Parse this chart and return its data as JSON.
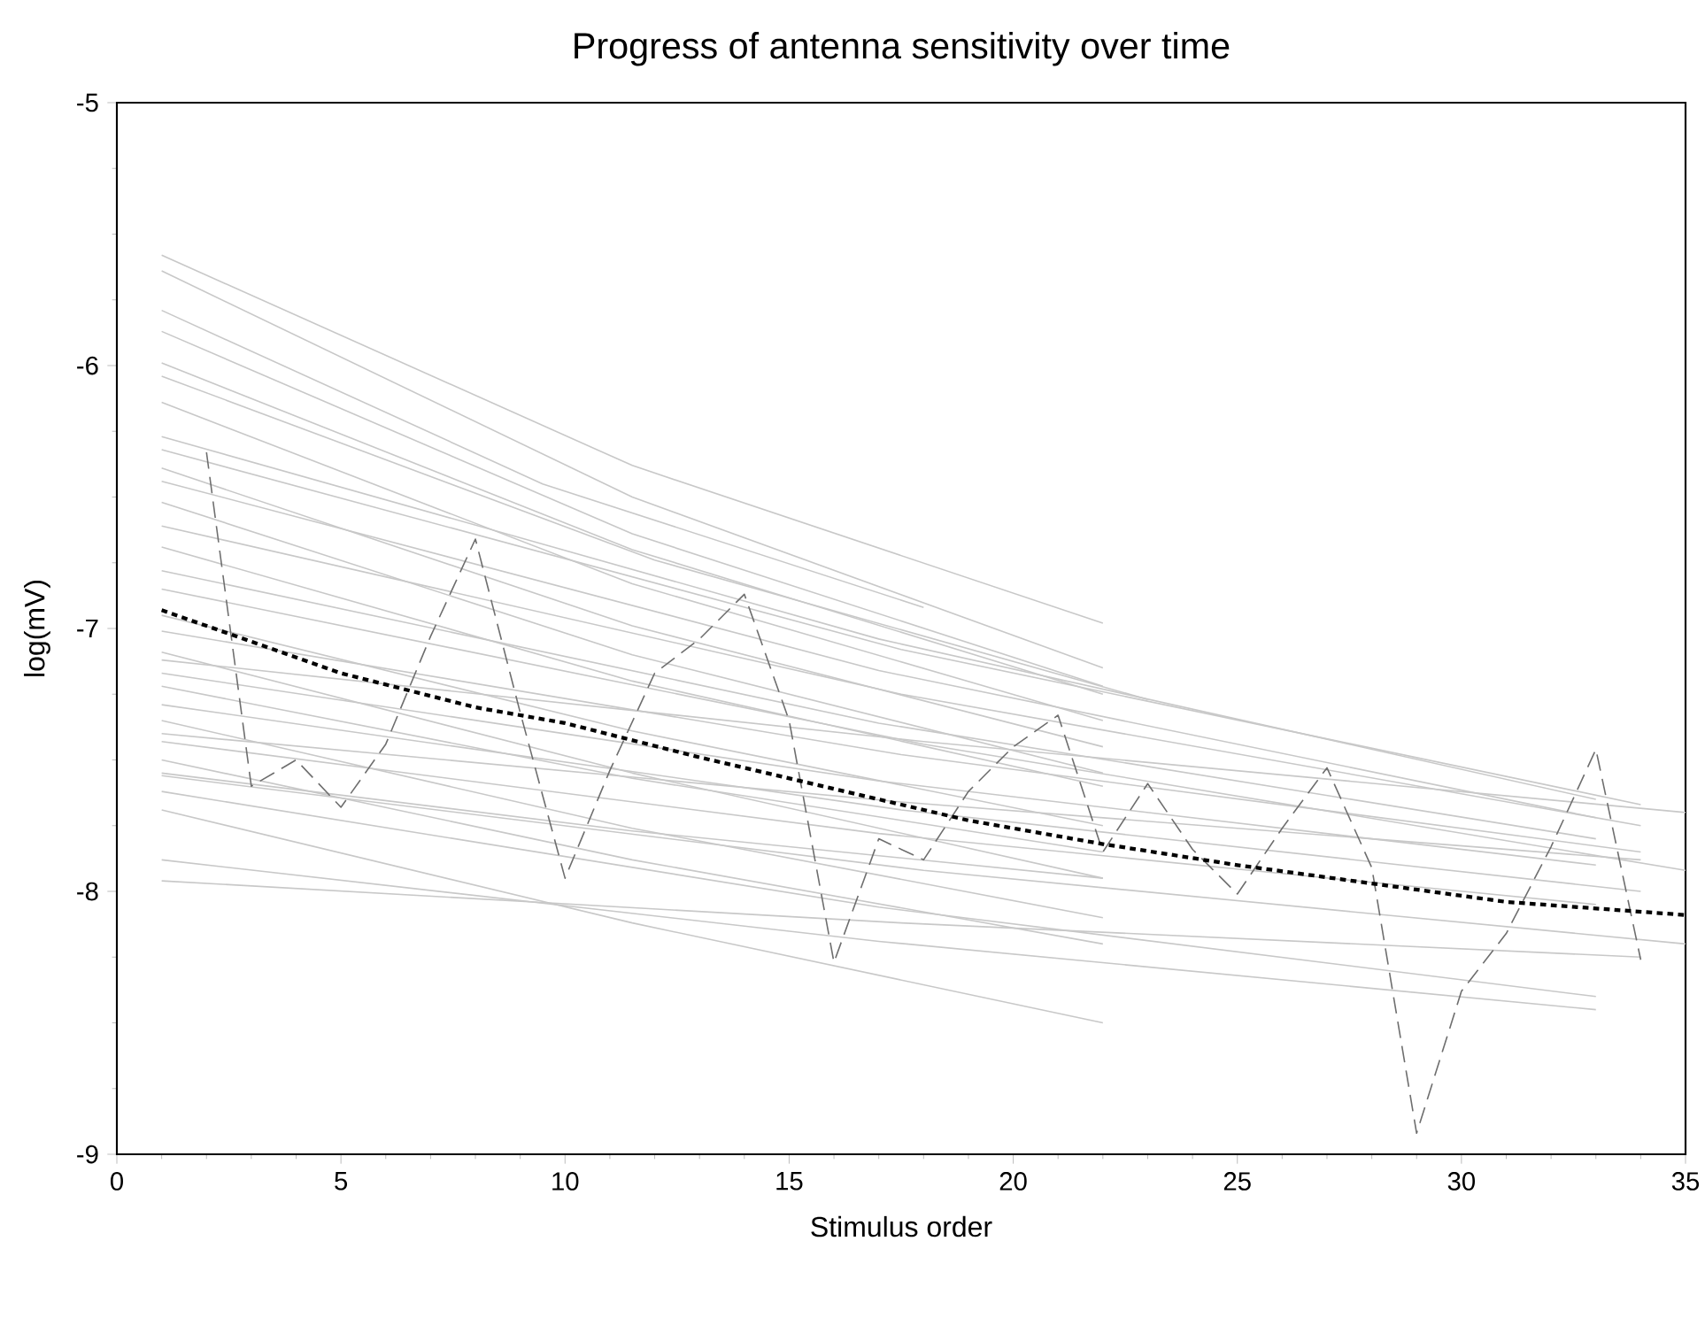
{
  "chart_data": {
    "type": "line",
    "title": "Progress of antenna sensitivity over time",
    "xlabel": "Stimulus order",
    "ylabel": "log(mV)",
    "xlim": [
      0,
      35
    ],
    "ylim": [
      -9,
      -5
    ],
    "xticks": [
      0,
      5,
      10,
      15,
      20,
      25,
      30,
      35
    ],
    "yticks": [
      -9,
      -8,
      -7,
      -6,
      -5
    ],
    "series": [
      {
        "color": "#c8c8c8",
        "line_style": "solid",
        "x": [
          1,
          11.5,
          22
        ],
        "values": [
          -5.58,
          -6.38,
          -6.98
        ]
      },
      {
        "color": "#c8c8c8",
        "line_style": "solid",
        "x": [
          1,
          11.5,
          22
        ],
        "values": [
          -5.64,
          -6.5,
          -7.15
        ]
      },
      {
        "color": "#c8c8c8",
        "line_style": "solid",
        "x": [
          1,
          9.5,
          18
        ],
        "values": [
          -5.79,
          -6.45,
          -6.92
        ]
      },
      {
        "color": "#c8c8c8",
        "line_style": "solid",
        "x": [
          1,
          11.5,
          22
        ],
        "values": [
          -5.87,
          -6.64,
          -7.22
        ]
      },
      {
        "color": "#c8c8c8",
        "line_style": "solid",
        "x": [
          1,
          11.5,
          22
        ],
        "values": [
          -5.99,
          -6.7,
          -7.25
        ]
      },
      {
        "color": "#c8c8c8",
        "line_style": "solid",
        "x": [
          1,
          12,
          23
        ],
        "values": [
          -6.04,
          -6.74,
          -7.27
        ]
      },
      {
        "color": "#c8c8c8",
        "line_style": "solid",
        "x": [
          1,
          11.5,
          22
        ],
        "values": [
          -6.14,
          -6.83,
          -7.35
        ]
      },
      {
        "color": "#c8c8c8",
        "line_style": "solid",
        "x": [
          1,
          17,
          33
        ],
        "values": [
          -6.27,
          -7.04,
          -7.65
        ]
      },
      {
        "color": "#c8c8c8",
        "line_style": "solid",
        "x": [
          1,
          17.5,
          34
        ],
        "values": [
          -6.32,
          -7.08,
          -7.67
        ]
      },
      {
        "color": "#c8c8c8",
        "line_style": "solid",
        "x": [
          1,
          11.5,
          22
        ],
        "values": [
          -6.39,
          -6.99,
          -7.45
        ]
      },
      {
        "color": "#c8c8c8",
        "line_style": "solid",
        "x": [
          1,
          17,
          33
        ],
        "values": [
          -6.44,
          -7.16,
          -7.72
        ]
      },
      {
        "color": "#c8c8c8",
        "line_style": "solid",
        "x": [
          1,
          11.5,
          22
        ],
        "values": [
          -6.52,
          -7.1,
          -7.55
        ]
      },
      {
        "color": "#c8c8c8",
        "line_style": "solid",
        "x": [
          1,
          17.5,
          34
        ],
        "values": [
          -6.61,
          -7.25,
          -7.75
        ]
      },
      {
        "color": "#c8c8c8",
        "line_style": "solid",
        "x": [
          1,
          11.5,
          22
        ],
        "values": [
          -6.69,
          -7.2,
          -7.6
        ]
      },
      {
        "color": "#c8c8c8",
        "line_style": "solid",
        "x": [
          1,
          17,
          33
        ],
        "values": [
          -6.78,
          -7.36,
          -7.8
        ]
      },
      {
        "color": "#c8c8c8",
        "line_style": "solid",
        "x": [
          1,
          18,
          35
        ],
        "values": [
          -6.85,
          -7.44,
          -7.92
        ]
      },
      {
        "color": "#c8c8c8",
        "line_style": "solid",
        "x": [
          1,
          11.5,
          22
        ],
        "values": [
          -6.95,
          -7.39,
          -7.75
        ]
      },
      {
        "color": "#c8c8c8",
        "line_style": "solid",
        "x": [
          1,
          17.5,
          34
        ],
        "values": [
          -7.01,
          -7.48,
          -7.85
        ]
      },
      {
        "color": "#c8c8c8",
        "line_style": "solid",
        "x": [
          1,
          11.5,
          22
        ],
        "values": [
          -7.09,
          -7.55,
          -7.95
        ]
      },
      {
        "color": "#c8c8c8",
        "line_style": "solid",
        "x": [
          1,
          17,
          33
        ],
        "values": [
          -7.17,
          -7.58,
          -7.9
        ]
      },
      {
        "color": "#c8c8c8",
        "line_style": "solid",
        "x": [
          1,
          11.5,
          22
        ],
        "values": [
          -7.22,
          -7.57,
          -7.85
        ]
      },
      {
        "color": "#c8c8c8",
        "line_style": "solid",
        "x": [
          1,
          17.5,
          34
        ],
        "values": [
          -7.29,
          -7.69,
          -8.0
        ]
      },
      {
        "color": "#c8c8c8",
        "line_style": "solid",
        "x": [
          1,
          11.5,
          22
        ],
        "values": [
          -7.35,
          -7.76,
          -8.1
        ]
      },
      {
        "color": "#c8c8c8",
        "line_style": "solid",
        "x": [
          1,
          17,
          33
        ],
        "values": [
          -7.43,
          -7.78,
          -8.05
        ]
      },
      {
        "color": "#c8c8c8",
        "line_style": "solid",
        "x": [
          1,
          11.5,
          22
        ],
        "values": [
          -7.5,
          -7.88,
          -8.2
        ]
      },
      {
        "color": "#c8c8c8",
        "line_style": "solid",
        "x": [
          1,
          18,
          35
        ],
        "values": [
          -7.56,
          -7.92,
          -8.2
        ]
      },
      {
        "color": "#c8c8c8",
        "line_style": "solid",
        "x": [
          1,
          17,
          33
        ],
        "values": [
          -7.62,
          -8.06,
          -8.4
        ]
      },
      {
        "color": "#c8c8c8",
        "line_style": "solid",
        "x": [
          1,
          11.5,
          22
        ],
        "values": [
          -7.69,
          -8.12,
          -8.5
        ]
      },
      {
        "color": "#c8c8c8",
        "line_style": "solid",
        "x": [
          1,
          17,
          33
        ],
        "values": [
          -7.88,
          -8.19,
          -8.45
        ]
      },
      {
        "color": "#c8c8c8",
        "line_style": "solid",
        "x": [
          1,
          17.5,
          34
        ],
        "values": [
          -7.96,
          -8.12,
          -8.25
        ]
      },
      {
        "color": "#c8c8c8",
        "line_style": "solid",
        "x": [
          1,
          17.5,
          34
        ],
        "values": [
          -7.4,
          -7.66,
          -7.88
        ]
      },
      {
        "color": "#c8c8c8",
        "line_style": "solid",
        "x": [
          1,
          18,
          35
        ],
        "values": [
          -7.12,
          -7.43,
          -7.7
        ]
      },
      {
        "color": "#c8c8c8",
        "line_style": "solid",
        "x": [
          1,
          11.5,
          22
        ],
        "values": [
          -7.55,
          -7.77,
          -7.95
        ]
      },
      {
        "color": "#6e6e6e",
        "line_style": "dashed",
        "x": [
          2,
          3,
          4,
          5,
          6,
          7,
          8,
          9,
          10,
          11,
          12,
          13,
          14,
          15,
          16,
          17,
          18,
          19,
          20,
          21,
          22,
          23,
          24,
          25,
          26,
          27,
          28,
          29,
          30,
          31,
          32,
          33,
          34
        ],
        "values": [
          -6.33,
          -7.6,
          -7.5,
          -7.68,
          -7.44,
          -7.03,
          -6.66,
          -7.32,
          -7.95,
          -7.54,
          -7.17,
          -7.04,
          -6.87,
          -7.35,
          -8.27,
          -7.8,
          -7.88,
          -7.62,
          -7.45,
          -7.33,
          -7.85,
          -7.59,
          -7.84,
          -8.01,
          -7.76,
          -7.53,
          -7.91,
          -8.92,
          -8.38,
          -8.16,
          -7.83,
          -7.46,
          -8.26
        ]
      },
      {
        "color": "#000000",
        "line_style": "dotted",
        "x": [
          1,
          5,
          8,
          10,
          13,
          16,
          19,
          22,
          25,
          28,
          31,
          35
        ],
        "values": [
          -6.93,
          -7.17,
          -7.3,
          -7.36,
          -7.49,
          -7.61,
          -7.73,
          -7.82,
          -7.9,
          -7.97,
          -8.04,
          -8.09
        ]
      }
    ]
  }
}
